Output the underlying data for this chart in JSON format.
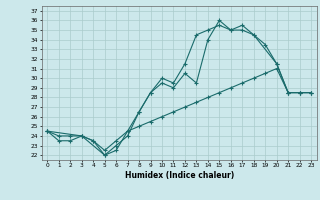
{
  "title": "",
  "xlabel": "Humidex (Indice chaleur)",
  "bg_color": "#cce8eb",
  "grid_color": "#aacccc",
  "line_color": "#1a6b6b",
  "xlim": [
    -0.5,
    23.5
  ],
  "ylim": [
    21.5,
    37.5
  ],
  "xticks": [
    0,
    1,
    2,
    3,
    4,
    5,
    6,
    7,
    8,
    9,
    10,
    11,
    12,
    13,
    14,
    15,
    16,
    17,
    18,
    19,
    20,
    21,
    22,
    23
  ],
  "yticks": [
    22,
    23,
    24,
    25,
    26,
    27,
    28,
    29,
    30,
    31,
    32,
    33,
    34,
    35,
    36,
    37
  ],
  "line1_x": [
    0,
    1,
    2,
    3,
    4,
    5,
    6,
    7,
    8,
    9,
    10,
    11,
    12,
    13,
    14,
    15,
    16,
    17,
    18,
    19,
    20,
    21,
    22,
    23
  ],
  "line1_y": [
    24.5,
    24.0,
    24.0,
    24.0,
    23.5,
    22.5,
    23.5,
    24.5,
    25.0,
    25.5,
    26.0,
    26.5,
    27.0,
    27.5,
    28.0,
    28.5,
    29.0,
    29.5,
    30.0,
    30.5,
    31.0,
    28.5,
    28.5,
    28.5
  ],
  "line2_x": [
    0,
    3,
    5,
    6,
    7,
    8,
    9,
    10,
    11,
    12,
    13,
    14,
    15,
    16,
    17,
    18,
    20,
    21,
    22,
    23
  ],
  "line2_y": [
    24.5,
    24.0,
    22.0,
    23.0,
    24.0,
    26.5,
    28.5,
    29.5,
    29.0,
    30.5,
    29.5,
    34.0,
    36.0,
    35.0,
    35.5,
    34.5,
    31.5,
    28.5,
    28.5,
    28.5
  ],
  "line3_x": [
    0,
    1,
    2,
    3,
    4,
    5,
    6,
    7,
    8,
    9,
    10,
    11,
    12,
    13,
    14,
    15,
    16,
    17,
    18,
    19,
    20,
    21,
    22,
    23
  ],
  "line3_y": [
    24.5,
    23.5,
    23.5,
    24.0,
    23.5,
    22.0,
    22.5,
    24.5,
    26.5,
    28.5,
    30.0,
    29.5,
    31.5,
    34.5,
    35.0,
    35.5,
    35.0,
    35.0,
    34.5,
    33.5,
    31.5,
    28.5,
    28.5,
    28.5
  ]
}
